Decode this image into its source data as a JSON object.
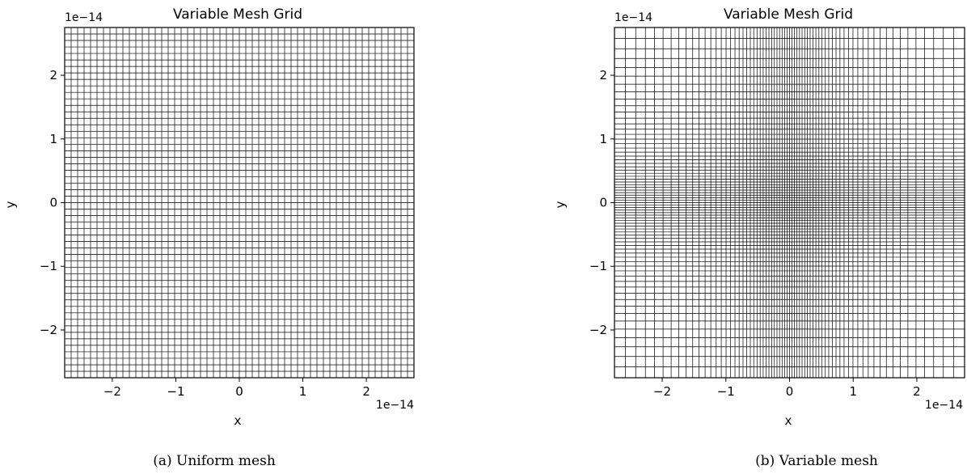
{
  "chart_data": [
    {
      "type": "mesh",
      "caption": "(a) Uniform mesh",
      "title": "Variable Mesh Grid",
      "xlabel": "x",
      "ylabel": "y",
      "x_offset_text": "1e−14",
      "y_offset_text": "1e−14",
      "scale": 1e-14,
      "xlim": [
        -2.75,
        2.75
      ],
      "ylim": [
        -2.75,
        2.75
      ],
      "xticks": [
        -2,
        -1,
        0,
        1,
        2
      ],
      "yticks": [
        -2,
        -1,
        0,
        1,
        2
      ],
      "xtick_labels": [
        "−2",
        "−1",
        "0",
        "1",
        "2"
      ],
      "ytick_labels": [
        "−2",
        "−1",
        "0",
        "1",
        "2"
      ],
      "mesh": {
        "spacing": "uniform",
        "nx": 55,
        "ny": 55
      },
      "line_color": "#000000"
    },
    {
      "type": "mesh",
      "caption": "(b) Variable mesh",
      "title": "Variable Mesh Grid",
      "xlabel": "x",
      "ylabel": "y",
      "x_offset_text": "1e−14",
      "y_offset_text": "1e−14",
      "scale": 1e-14,
      "xlim": [
        -2.75,
        2.75
      ],
      "ylim": [
        -2.75,
        2.75
      ],
      "xticks": [
        -2,
        -1,
        0,
        1,
        2
      ],
      "yticks": [
        -2,
        -1,
        0,
        1,
        2
      ],
      "xtick_labels": [
        "−2",
        "−1",
        "0",
        "1",
        "2"
      ],
      "ytick_labels": [
        "−2",
        "−1",
        "0",
        "1",
        "2"
      ],
      "mesh": {
        "spacing": "clustered_at_center",
        "nx": 71,
        "ny": 71,
        "refinement": 2.2
      },
      "line_color": "#000000"
    }
  ]
}
